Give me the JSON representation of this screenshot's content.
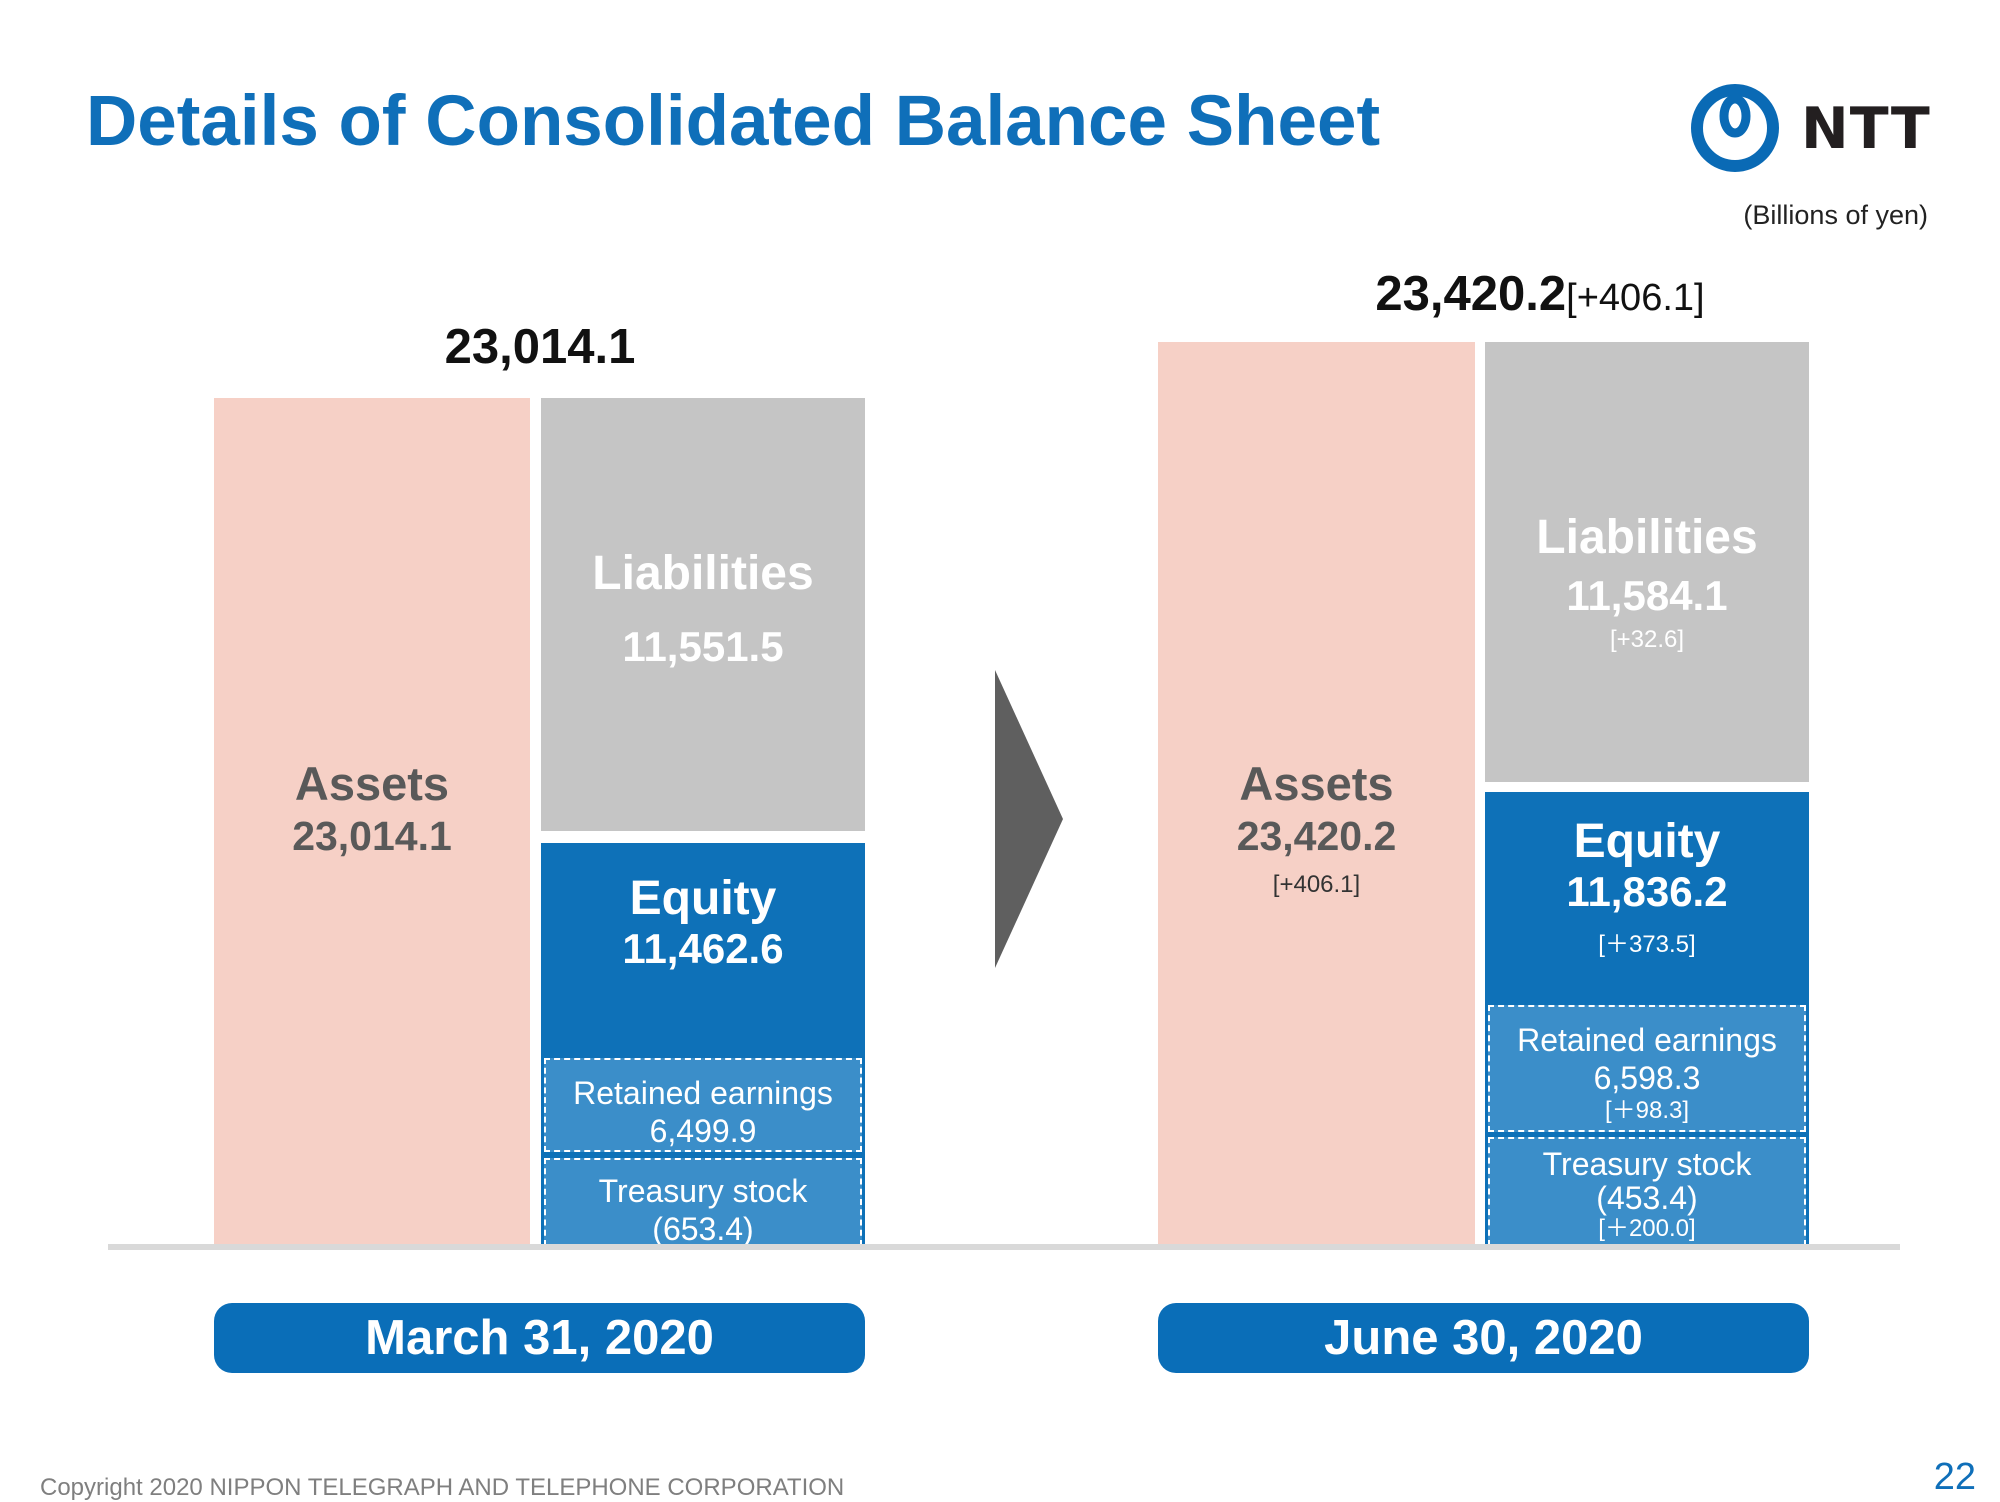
{
  "header": {
    "title": "Details of Consolidated Balance Sheet",
    "logo_text": "NTT",
    "unit_note": "(Billions of yen)"
  },
  "chart_data": {
    "type": "bar",
    "units": "Billions of yen",
    "periods": [
      {
        "label": "March 31, 2020",
        "total": "23,014.1",
        "total_delta": "",
        "assets": {
          "label": "Assets",
          "value": 23014.1,
          "display": "23,014.1",
          "delta": ""
        },
        "liabilities": {
          "label": "Liabilities",
          "value": 11551.5,
          "display": "11,551.5",
          "delta": ""
        },
        "equity": {
          "label": "Equity",
          "value": 11462.6,
          "display": "11,462.6",
          "delta": ""
        },
        "retained_earnings": {
          "label": "Retained earnings",
          "value": 6499.9,
          "display": "6,499.9",
          "delta": ""
        },
        "treasury_stock": {
          "label": "Treasury stock",
          "value": -653.4,
          "display": "(653.4)",
          "delta": ""
        }
      },
      {
        "label": "June 30, 2020",
        "total": "23,420.2",
        "total_delta": "[+406.1]",
        "assets": {
          "label": "Assets",
          "value": 23420.2,
          "display": "23,420.2",
          "delta": "[+406.1]"
        },
        "liabilities": {
          "label": "Liabilities",
          "value": 11584.1,
          "display": "11,584.1",
          "delta": "[+32.6]"
        },
        "equity": {
          "label": "Equity",
          "value": 11836.2,
          "display": "11,836.2",
          "delta": "[＋373.5]"
        },
        "retained_earnings": {
          "label": "Retained earnings",
          "value": 6598.3,
          "display": "6,598.3",
          "delta": "[＋98.3]"
        },
        "treasury_stock": {
          "label": "Treasury stock",
          "value": -453.4,
          "display": "(453.4)",
          "delta": "[＋200.0]"
        }
      }
    ]
  },
  "footer": {
    "copyright": "Copyright 2020 NIPPON TELEGRAPH AND TELEPHONE CORPORATION",
    "page_number": "22"
  },
  "colors": {
    "title_blue": "#0f6fb9",
    "assets": "#f6d0c6",
    "liabilities": "#c5c5c5",
    "equity": "#0e71b8",
    "equity_sub": "#3b8ec9",
    "arrow": "#5f5f5f"
  }
}
